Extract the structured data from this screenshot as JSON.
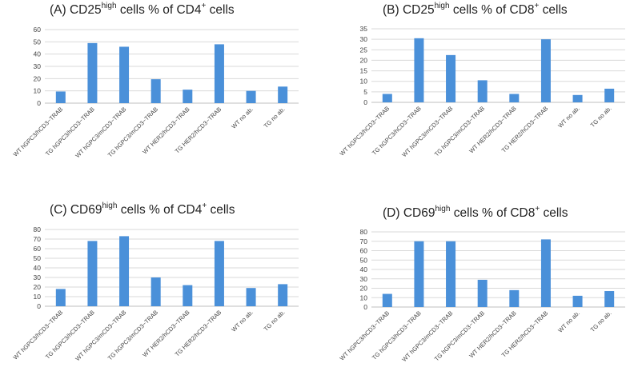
{
  "chart_data": [
    {
      "type": "bar",
      "panel_label": "(A)",
      "title_parts": {
        "a": "CD25",
        "b": "high",
        "c": " cells % of CD4",
        "d": "+",
        "e": " cells"
      },
      "title": "(A) CD25high cells % of CD4+ cells",
      "categories": [
        "WT hGPC3/hCD3−TRAB",
        "TG hGPC3/hCD3−TRAB",
        "WT hGPC3/mCD3−TRAB",
        "TG hGPC3/mCD3−TRAB",
        "WT HER2/hCD3−TRAB",
        "TG HER2/hCD3−TRAB",
        "WT no ab.",
        "TG no ab."
      ],
      "values": [
        9.5,
        49,
        46,
        19.5,
        11,
        48,
        10,
        13.5
      ],
      "yticks": [
        0,
        10,
        20,
        30,
        40,
        50,
        60
      ],
      "ylim": [
        0,
        60
      ],
      "color": "#4a90d9"
    },
    {
      "type": "bar",
      "panel_label": "(B)",
      "title_parts": {
        "a": "CD25",
        "b": "high",
        "c": " cells % of CD8",
        "d": "+",
        "e": " cells"
      },
      "title": "(B) CD25high cells % of CD8+ cells",
      "categories": [
        "WT hGPC3/hCD3−TRAB",
        "TG hGPC3/hCD3−TRAB",
        "WT hGPC3/mCD3−TRAB",
        "TG hGPC3/mCD3−TRAB",
        "WT HER2/hCD3−TRAB",
        "TG HER2/hCD3−TRAB",
        "WT no ab.",
        "TG no ab."
      ],
      "values": [
        4,
        30.5,
        22.5,
        10.5,
        4,
        30,
        3.5,
        6.5
      ],
      "yticks": [
        0,
        5,
        10,
        15,
        20,
        25,
        30,
        35
      ],
      "ylim": [
        0,
        35
      ],
      "color": "#4a90d9"
    },
    {
      "type": "bar",
      "panel_label": "(C)",
      "title_parts": {
        "a": "CD69",
        "b": "high",
        "c": " cells % of CD4",
        "d": "+",
        "e": " cells"
      },
      "title": "(C) CD69high cells % of CD4+ cells",
      "categories": [
        "WT hGPC3/hCD3−TRAB",
        "TG hGPC3/hCD3−TRAB",
        "WT hGPC3/mCD3−TRAB",
        "TG hGPC3/mCD3−TRAB",
        "WT HER2/hCD3−TRAB",
        "TG HER2/hCD3−TRAB",
        "WT no ab.",
        "TG no ab."
      ],
      "values": [
        18,
        68,
        73,
        30,
        22,
        68,
        19,
        23
      ],
      "yticks": [
        0,
        10,
        20,
        30,
        40,
        50,
        60,
        70,
        80
      ],
      "ylim": [
        0,
        80
      ],
      "color": "#4a90d9"
    },
    {
      "type": "bar",
      "panel_label": "(D)",
      "title_parts": {
        "a": "CD69",
        "b": "high",
        "c": " cells % of CD8",
        "d": "+",
        "e": " cells"
      },
      "title": "(D) CD69high cells % of CD8+ cells",
      "categories": [
        "WT hGPC3/hCD3−TRAB",
        "TG hGPC3/hCD3−TRAB",
        "WT hGPC3/mCD3−TRAB",
        "TG hGPC3/mCD3−TRAB",
        "WT HER2/hCD3−TRAB",
        "TG HER2/hCD3−TRAB",
        "WT no ab.",
        "TG no ab."
      ],
      "values": [
        14,
        70,
        70,
        29,
        18,
        72,
        12,
        17
      ],
      "yticks": [
        0,
        10,
        20,
        30,
        40,
        50,
        60,
        70,
        80
      ],
      "ylim": [
        0,
        80
      ],
      "color": "#4a90d9"
    }
  ]
}
